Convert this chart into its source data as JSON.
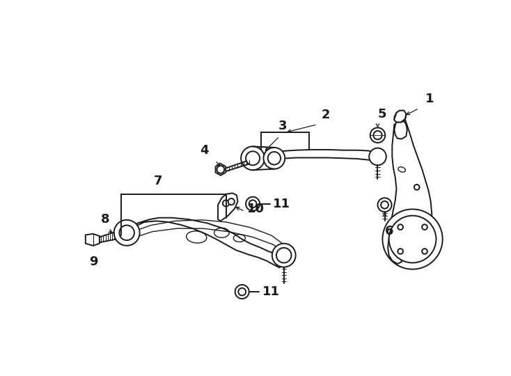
{
  "bg_color": "#ffffff",
  "line_color": "#1a1a1a",
  "fig_width": 7.34,
  "fig_height": 5.4,
  "dpi": 100,
  "lw": 1.4
}
